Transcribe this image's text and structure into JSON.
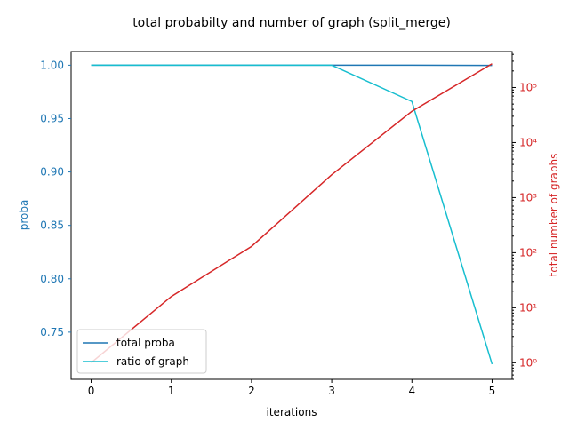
{
  "chart_data": {
    "type": "line",
    "title": "total probabilty and number of graph (split_merge)",
    "xlabel": "iterations",
    "ylabel_left": "proba",
    "ylabel_right": "total number of graphs",
    "x": [
      0,
      1,
      2,
      3,
      4,
      5
    ],
    "xlim": [
      -0.25,
      5.25
    ],
    "x_ticks": [
      "0",
      "1",
      "2",
      "3",
      "4",
      "5"
    ],
    "y_left_lim": [
      0.7058,
      1.0128
    ],
    "y_left_ticks": [
      "0.75",
      "0.80",
      "0.85",
      "0.90",
      "0.95",
      "1.00"
    ],
    "y_right_scale": "log",
    "y_right_lim": [
      0.5,
      450000
    ],
    "y_right_ticks": [
      "10⁰",
      "10¹",
      "10²",
      "10³",
      "10⁴",
      "10⁵"
    ],
    "series": [
      {
        "name": "total proba",
        "axis": "left",
        "color": "#1f77b4",
        "values": [
          1.0,
          1.0,
          1.0,
          1.0,
          1.0,
          0.9998
        ]
      },
      {
        "name": "ratio of graph",
        "axis": "left",
        "color": "#17becf",
        "values": [
          1.0,
          1.0,
          1.0,
          1.0,
          0.966,
          0.72
        ]
      },
      {
        "axis": "right",
        "color": "#d62728",
        "values": [
          1,
          16,
          130,
          2600,
          37000,
          270000
        ]
      }
    ],
    "legend_position": "lower-left",
    "left_axis_color": "#1f77b4",
    "right_axis_color": "#d62728",
    "grid": false
  }
}
